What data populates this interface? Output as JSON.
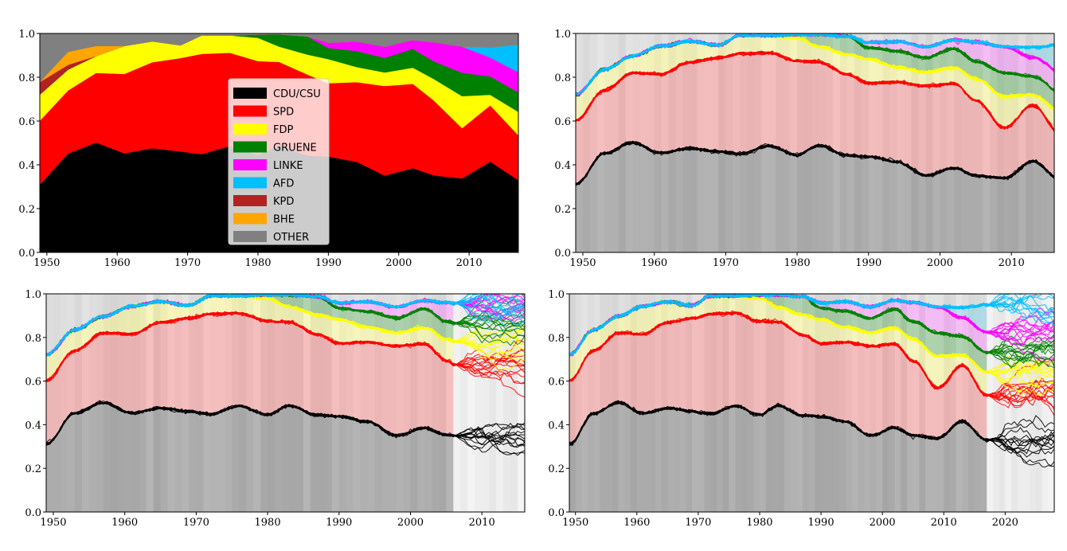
{
  "chart_data": [
    {
      "type": "area",
      "stacked": true,
      "subplot": "top-left",
      "x": [
        1949,
        1953,
        1957,
        1961,
        1965,
        1969,
        1972,
        1976,
        1980,
        1983,
        1987,
        1990,
        1994,
        1998,
        2002,
        2005,
        2009,
        2013,
        2017
      ],
      "series": [
        {
          "name": "CDU/CSU",
          "color": "#000000",
          "values": [
            0.31,
            0.452,
            0.502,
            0.453,
            0.476,
            0.461,
            0.449,
            0.486,
            0.445,
            0.488,
            0.443,
            0.438,
            0.414,
            0.351,
            0.385,
            0.352,
            0.338,
            0.415,
            0.33
          ]
        },
        {
          "name": "SPD",
          "color": "#ff0000",
          "values": [
            0.292,
            0.288,
            0.318,
            0.362,
            0.393,
            0.427,
            0.458,
            0.426,
            0.429,
            0.382,
            0.37,
            0.335,
            0.364,
            0.409,
            0.385,
            0.342,
            0.23,
            0.257,
            0.205
          ]
        },
        {
          "name": "FDP",
          "color": "#ffff00",
          "values": [
            0.119,
            0.095,
            0.077,
            0.128,
            0.095,
            0.058,
            0.084,
            0.079,
            0.106,
            0.07,
            0.091,
            0.11,
            0.069,
            0.062,
            0.074,
            0.098,
            0.146,
            0.048,
            0.107
          ]
        },
        {
          "name": "GRUENE",
          "color": "#008000",
          "values": [
            0.0,
            0.0,
            0.0,
            0.0,
            0.0,
            0.0,
            0.0,
            0.0,
            0.015,
            0.056,
            0.083,
            0.051,
            0.073,
            0.067,
            0.086,
            0.081,
            0.107,
            0.084,
            0.089
          ]
        },
        {
          "name": "LINKE",
          "color": "#ff00ff",
          "values": [
            0.0,
            0.0,
            0.0,
            0.0,
            0.0,
            0.0,
            0.0,
            0.0,
            0.0,
            0.0,
            0.0,
            0.024,
            0.044,
            0.051,
            0.04,
            0.087,
            0.119,
            0.086,
            0.092
          ]
        },
        {
          "name": "AFD",
          "color": "#00bfff",
          "values": [
            0.0,
            0.0,
            0.0,
            0.0,
            0.0,
            0.0,
            0.0,
            0.0,
            0.0,
            0.0,
            0.0,
            0.0,
            0.0,
            0.0,
            0.0,
            0.0,
            0.0,
            0.047,
            0.126
          ]
        },
        {
          "name": "KPD",
          "color": "#b22222",
          "values": [
            0.057,
            0.022,
            0.0,
            0.0,
            0.0,
            0.0,
            0.0,
            0.0,
            0.0,
            0.0,
            0.0,
            0.0,
            0.0,
            0.0,
            0.0,
            0.0,
            0.0,
            0.0,
            0.0
          ]
        },
        {
          "name": "BHE",
          "color": "#ffa500",
          "values": [
            0.0,
            0.059,
            0.046,
            0.0,
            0.0,
            0.0,
            0.0,
            0.0,
            0.0,
            0.0,
            0.0,
            0.0,
            0.0,
            0.0,
            0.0,
            0.0,
            0.0,
            0.0,
            0.0
          ]
        },
        {
          "name": "OTHER",
          "color": "#808080",
          "values": [
            0.221,
            0.084,
            0.057,
            0.057,
            0.036,
            0.054,
            0.009,
            0.009,
            0.005,
            0.004,
            0.013,
            0.042,
            0.036,
            0.06,
            0.03,
            0.04,
            0.06,
            0.063,
            0.051
          ]
        }
      ],
      "ylim": [
        0.0,
        1.0
      ],
      "xlim": [
        1949,
        2017
      ],
      "xticks": [
        1950,
        1960,
        1970,
        1980,
        1990,
        2000,
        2010
      ],
      "xtick_labels": [
        "1950",
        "1960",
        "1970",
        "1980",
        "1990",
        "2000",
        "2010"
      ],
      "yticks": [
        0.0,
        0.2,
        0.4,
        0.6,
        0.8,
        1.0
      ],
      "ytick_labels": [
        "0.0",
        "0.2",
        "0.4",
        "0.6",
        "0.8",
        "1.0"
      ],
      "legend": "center"
    },
    {
      "type": "line",
      "subplot": "top-right",
      "xlim": [
        1949,
        2016
      ],
      "xticks": [
        1950,
        1960,
        1970,
        1980,
        1990,
        2000,
        2010
      ],
      "xtick_labels": [
        "1950",
        "1960",
        "1970",
        "1980",
        "1990",
        "2000",
        "2010"
      ],
      "yticks": [
        0.0,
        0.2,
        0.4,
        0.6,
        0.8,
        1.0
      ],
      "ytick_labels": [
        "0.0",
        "0.2",
        "0.4",
        "0.6",
        "0.8",
        "1.0"
      ],
      "ylim": [
        0.0,
        1.0
      ],
      "forecast_start": null,
      "series_note": "bundle of posterior sample trajectories of cumulative party shares"
    },
    {
      "type": "line",
      "subplot": "bottom-left",
      "xlim": [
        1949,
        2016
      ],
      "xticks": [
        1950,
        1960,
        1970,
        1980,
        1990,
        2000,
        2010
      ],
      "xtick_labels": [
        "1950",
        "1960",
        "1970",
        "1980",
        "1990",
        "2000",
        "2010"
      ],
      "yticks": [
        0.0,
        0.2,
        0.4,
        0.6,
        0.8,
        1.0
      ],
      "ytick_labels": [
        "0.0",
        "0.2",
        "0.4",
        "0.6",
        "0.8",
        "1.0"
      ],
      "ylim": [
        0.0,
        1.0
      ],
      "forecast_start": 2006
    },
    {
      "type": "line",
      "subplot": "bottom-right",
      "xlim": [
        1949,
        2028
      ],
      "xticks": [
        1950,
        1960,
        1970,
        1980,
        1990,
        2000,
        2010,
        2020
      ],
      "xtick_labels": [
        "1950",
        "1960",
        "1970",
        "1980",
        "1990",
        "2000",
        "2010",
        "2020"
      ],
      "yticks": [
        0.0,
        0.2,
        0.4,
        0.6,
        0.8,
        1.0
      ],
      "ytick_labels": [
        "0.0",
        "0.2",
        "0.4",
        "0.6",
        "0.8",
        "1.0"
      ],
      "ylim": [
        0.0,
        1.0
      ],
      "forecast_start": 2017
    }
  ]
}
